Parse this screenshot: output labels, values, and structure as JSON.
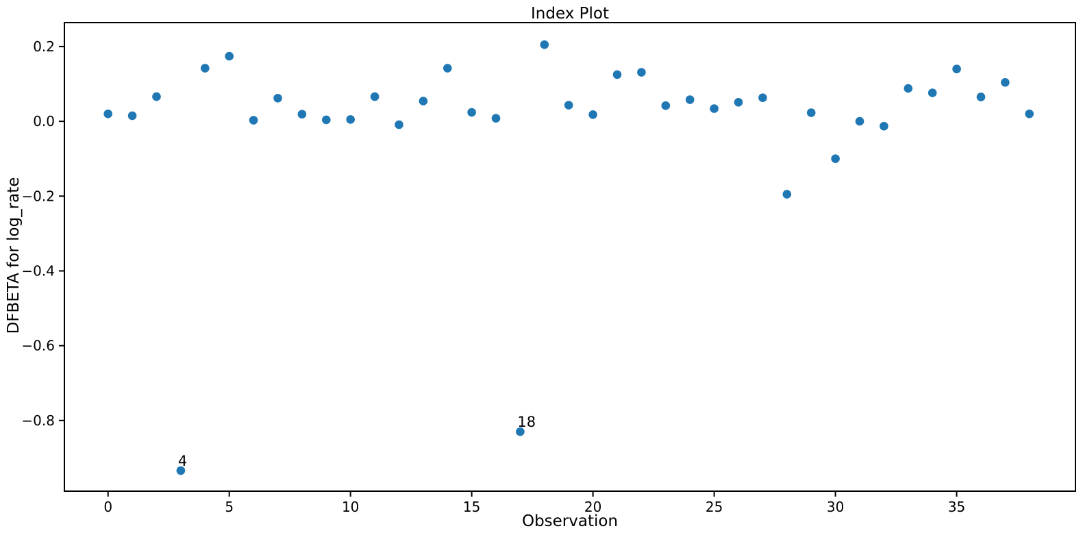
{
  "chart_data": {
    "type": "scatter",
    "title": "Index Plot",
    "xlabel": "Observation",
    "ylabel": "DFBETA for log_rate",
    "x": [
      0,
      1,
      2,
      3,
      4,
      5,
      6,
      7,
      8,
      9,
      10,
      11,
      12,
      13,
      14,
      15,
      16,
      17,
      18,
      19,
      20,
      21,
      22,
      23,
      24,
      25,
      26,
      27,
      28,
      29,
      30,
      31,
      32,
      33,
      34,
      35,
      36,
      37,
      38
    ],
    "y": [
      0.02,
      0.015,
      0.066,
      -0.934,
      0.142,
      0.174,
      0.003,
      0.062,
      0.019,
      0.004,
      0.005,
      0.066,
      -0.009,
      0.054,
      0.142,
      0.024,
      0.008,
      -0.83,
      0.205,
      0.043,
      0.018,
      0.125,
      0.131,
      0.042,
      0.058,
      0.034,
      0.051,
      0.063,
      -0.195,
      0.023,
      -0.1,
      0.0,
      -0.013,
      0.088,
      0.076,
      0.14,
      0.065,
      0.104,
      0.02
    ],
    "annotations": [
      {
        "x": 3,
        "y": -0.934,
        "label": "4"
      },
      {
        "x": 17,
        "y": -0.83,
        "label": "18"
      }
    ],
    "xlim": [
      -1.8,
      39.9
    ],
    "ylim": [
      -0.989,
      0.264
    ],
    "xticks": [
      0,
      5,
      10,
      15,
      20,
      25,
      30,
      35
    ],
    "xtick_labels": [
      "0",
      "5",
      "10",
      "15",
      "20",
      "25",
      "30",
      "35"
    ],
    "yticks": [
      0.2,
      0.0,
      -0.2,
      -0.4,
      -0.6,
      -0.8
    ],
    "ytick_labels": [
      "0.2",
      "0.0",
      "−0.2",
      "−0.4",
      "−0.6",
      "−0.8"
    ],
    "grid": false,
    "legend": null,
    "marker_color": "#1f77b4",
    "spine_color": "#000000",
    "text_color": "#000000",
    "background_color": "#ffffff"
  }
}
